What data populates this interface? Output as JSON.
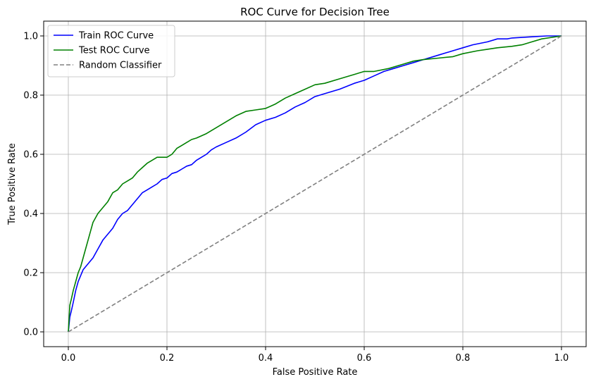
{
  "chart_data": {
    "type": "line",
    "title": "ROC Curve for Decision Tree",
    "xlabel": "False Positive Rate",
    "ylabel": "True Positive Rate",
    "xlim": [
      -0.05,
      1.05
    ],
    "ylim": [
      -0.05,
      1.05
    ],
    "xticks": [
      0.0,
      0.2,
      0.4,
      0.6,
      0.8,
      1.0
    ],
    "yticks": [
      0.0,
      0.2,
      0.4,
      0.6,
      0.8,
      1.0
    ],
    "xtick_labels": [
      "0.0",
      "0.2",
      "0.4",
      "0.6",
      "0.8",
      "1.0"
    ],
    "ytick_labels": [
      "0.0",
      "0.2",
      "0.4",
      "0.6",
      "0.8",
      "1.0"
    ],
    "grid": true,
    "legend_position": "top-left",
    "series": [
      {
        "name": "Train ROC Curve",
        "color": "#0000ff",
        "dash": "solid",
        "x": [
          0.0,
          0.003,
          0.006,
          0.01,
          0.015,
          0.02,
          0.025,
          0.03,
          0.04,
          0.05,
          0.06,
          0.07,
          0.08,
          0.09,
          0.1,
          0.11,
          0.12,
          0.13,
          0.14,
          0.15,
          0.16,
          0.17,
          0.18,
          0.19,
          0.2,
          0.21,
          0.22,
          0.23,
          0.24,
          0.25,
          0.26,
          0.27,
          0.28,
          0.29,
          0.3,
          0.32,
          0.34,
          0.36,
          0.38,
          0.4,
          0.42,
          0.44,
          0.46,
          0.48,
          0.5,
          0.52,
          0.55,
          0.58,
          0.6,
          0.62,
          0.64,
          0.66,
          0.68,
          0.7,
          0.72,
          0.75,
          0.78,
          0.8,
          0.82,
          0.85,
          0.87,
          0.89,
          0.9,
          0.92,
          0.95,
          0.97,
          1.0
        ],
        "y": [
          0.0,
          0.05,
          0.07,
          0.1,
          0.14,
          0.17,
          0.19,
          0.21,
          0.23,
          0.25,
          0.28,
          0.31,
          0.33,
          0.35,
          0.38,
          0.4,
          0.41,
          0.43,
          0.45,
          0.47,
          0.48,
          0.49,
          0.5,
          0.515,
          0.52,
          0.535,
          0.54,
          0.55,
          0.56,
          0.565,
          0.58,
          0.59,
          0.6,
          0.615,
          0.625,
          0.64,
          0.655,
          0.675,
          0.7,
          0.715,
          0.725,
          0.74,
          0.76,
          0.775,
          0.795,
          0.805,
          0.82,
          0.84,
          0.85,
          0.865,
          0.88,
          0.89,
          0.9,
          0.91,
          0.92,
          0.935,
          0.95,
          0.96,
          0.97,
          0.98,
          0.99,
          0.99,
          0.993,
          0.995,
          0.998,
          1.0,
          1.0
        ]
      },
      {
        "name": "Test ROC Curve",
        "color": "#008000",
        "dash": "solid",
        "x": [
          0.0,
          0.003,
          0.006,
          0.01,
          0.015,
          0.02,
          0.025,
          0.03,
          0.035,
          0.04,
          0.045,
          0.05,
          0.06,
          0.07,
          0.08,
          0.09,
          0.1,
          0.11,
          0.12,
          0.13,
          0.14,
          0.15,
          0.16,
          0.17,
          0.18,
          0.19,
          0.2,
          0.21,
          0.22,
          0.23,
          0.24,
          0.25,
          0.26,
          0.28,
          0.3,
          0.32,
          0.34,
          0.36,
          0.38,
          0.4,
          0.42,
          0.44,
          0.46,
          0.48,
          0.5,
          0.52,
          0.55,
          0.58,
          0.6,
          0.62,
          0.65,
          0.68,
          0.7,
          0.72,
          0.75,
          0.78,
          0.8,
          0.83,
          0.85,
          0.87,
          0.9,
          0.92,
          0.94,
          0.96,
          1.0
        ],
        "y": [
          0.0,
          0.09,
          0.11,
          0.14,
          0.17,
          0.2,
          0.22,
          0.25,
          0.28,
          0.31,
          0.34,
          0.37,
          0.4,
          0.42,
          0.44,
          0.47,
          0.48,
          0.5,
          0.51,
          0.52,
          0.54,
          0.555,
          0.57,
          0.58,
          0.59,
          0.59,
          0.59,
          0.6,
          0.62,
          0.63,
          0.64,
          0.65,
          0.655,
          0.67,
          0.69,
          0.71,
          0.73,
          0.745,
          0.75,
          0.755,
          0.77,
          0.79,
          0.805,
          0.82,
          0.835,
          0.84,
          0.855,
          0.87,
          0.88,
          0.88,
          0.89,
          0.905,
          0.915,
          0.92,
          0.925,
          0.93,
          0.94,
          0.95,
          0.955,
          0.96,
          0.965,
          0.97,
          0.98,
          0.99,
          1.0
        ]
      },
      {
        "name": "Random Classifier",
        "color": "#808080",
        "dash": "dashed",
        "x": [
          0.0,
          1.0
        ],
        "y": [
          0.0,
          1.0
        ]
      }
    ]
  }
}
